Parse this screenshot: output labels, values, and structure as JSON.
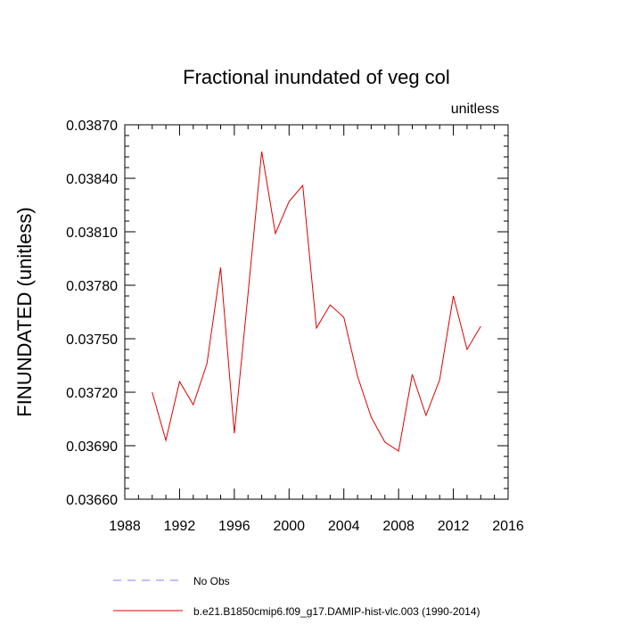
{
  "chart_data": {
    "type": "line",
    "title": "Fractional inundated of veg col",
    "units": "unitless",
    "xlabel": "",
    "ylabel": "FINUNDATED  (unitless)",
    "xlim": [
      1988,
      2016
    ],
    "ylim": [
      0.0366,
      0.0387
    ],
    "xticks": [
      1988,
      1992,
      1996,
      2000,
      2004,
      2008,
      2012,
      2016
    ],
    "yticks": [
      0.0366,
      0.0369,
      0.0372,
      0.0375,
      0.0378,
      0.0381,
      0.0384,
      0.0387
    ],
    "ytick_labels": [
      "0.03660",
      "0.03690",
      "0.03720",
      "0.03750",
      "0.03780",
      "0.03810",
      "0.03840",
      "0.03870"
    ],
    "grid": false,
    "legend_position": "bottom",
    "legend": [
      {
        "label": "No Obs",
        "color": "#8080ff",
        "dash": true
      },
      {
        "label": "b.e21.B1850cmip6.f09_g17.DAMIP-hist-vlc.003 (1990-2014)",
        "color": "#e00000",
        "dash": false
      }
    ],
    "series": [
      {
        "name": "b.e21.B1850cmip6.f09_g17.DAMIP-hist-vlc.003 (1990-2014)",
        "color": "#e00000",
        "x": [
          1990,
          1991,
          1992,
          1993,
          1994,
          1995,
          1996,
          1997,
          1998,
          1999,
          2000,
          2001,
          2002,
          2003,
          2004,
          2005,
          2006,
          2007,
          2008,
          2009,
          2010,
          2011,
          2012,
          2013,
          2014
        ],
        "y": [
          0.0372,
          0.03693,
          0.03726,
          0.03713,
          0.03736,
          0.0379,
          0.03697,
          0.03775,
          0.03855,
          0.03809,
          0.03827,
          0.03836,
          0.03756,
          0.03769,
          0.03762,
          0.03729,
          0.03706,
          0.03692,
          0.03687,
          0.0373,
          0.03707,
          0.03727,
          0.03774,
          0.03744,
          0.03757
        ]
      }
    ]
  }
}
